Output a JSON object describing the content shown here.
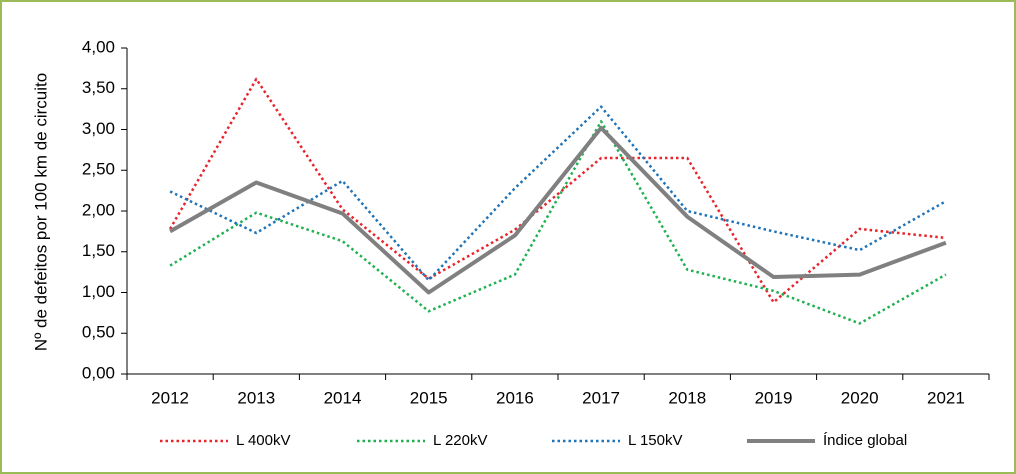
{
  "chart_data": {
    "type": "line",
    "y_label": "Nº de defeitos por 100 km de circuito",
    "categories": [
      "2012",
      "2013",
      "2014",
      "2015",
      "2016",
      "2017",
      "2018",
      "2019",
      "2020",
      "2021"
    ],
    "series": [
      {
        "name": "L 400kV",
        "color": "#e8232a",
        "style": "dotted",
        "values": [
          1.78,
          3.62,
          2.02,
          1.17,
          1.77,
          2.65,
          2.65,
          0.88,
          1.78,
          1.67
        ]
      },
      {
        "name": "L 220kV",
        "color": "#1fb050",
        "style": "dotted",
        "values": [
          1.33,
          1.98,
          1.63,
          0.77,
          1.22,
          3.1,
          1.28,
          1.02,
          0.62,
          1.22
        ]
      },
      {
        "name": "L 150kV",
        "color": "#1f73b8",
        "style": "dotted",
        "values": [
          2.24,
          1.73,
          2.37,
          1.15,
          2.28,
          3.28,
          2.0,
          1.75,
          1.52,
          2.12
        ]
      },
      {
        "name": "Índice global",
        "color": "#808080",
        "style": "solid",
        "values": [
          1.75,
          2.35,
          1.97,
          1.0,
          1.7,
          3.02,
          1.93,
          1.19,
          1.22,
          1.61
        ]
      }
    ],
    "ylim": [
      0,
      4
    ],
    "yticks": [
      {
        "value": 0,
        "label": "0,00"
      },
      {
        "value": 0.5,
        "label": "0,50"
      },
      {
        "value": 1,
        "label": "1,00"
      },
      {
        "value": 1.5,
        "label": "1,50"
      },
      {
        "value": 2,
        "label": "2,00"
      },
      {
        "value": 2.5,
        "label": "2,50"
      },
      {
        "value": 3,
        "label": "3,00"
      },
      {
        "value": 3.5,
        "label": "3,50"
      },
      {
        "value": 4,
        "label": "4,00"
      }
    ],
    "legend": "bottom"
  }
}
